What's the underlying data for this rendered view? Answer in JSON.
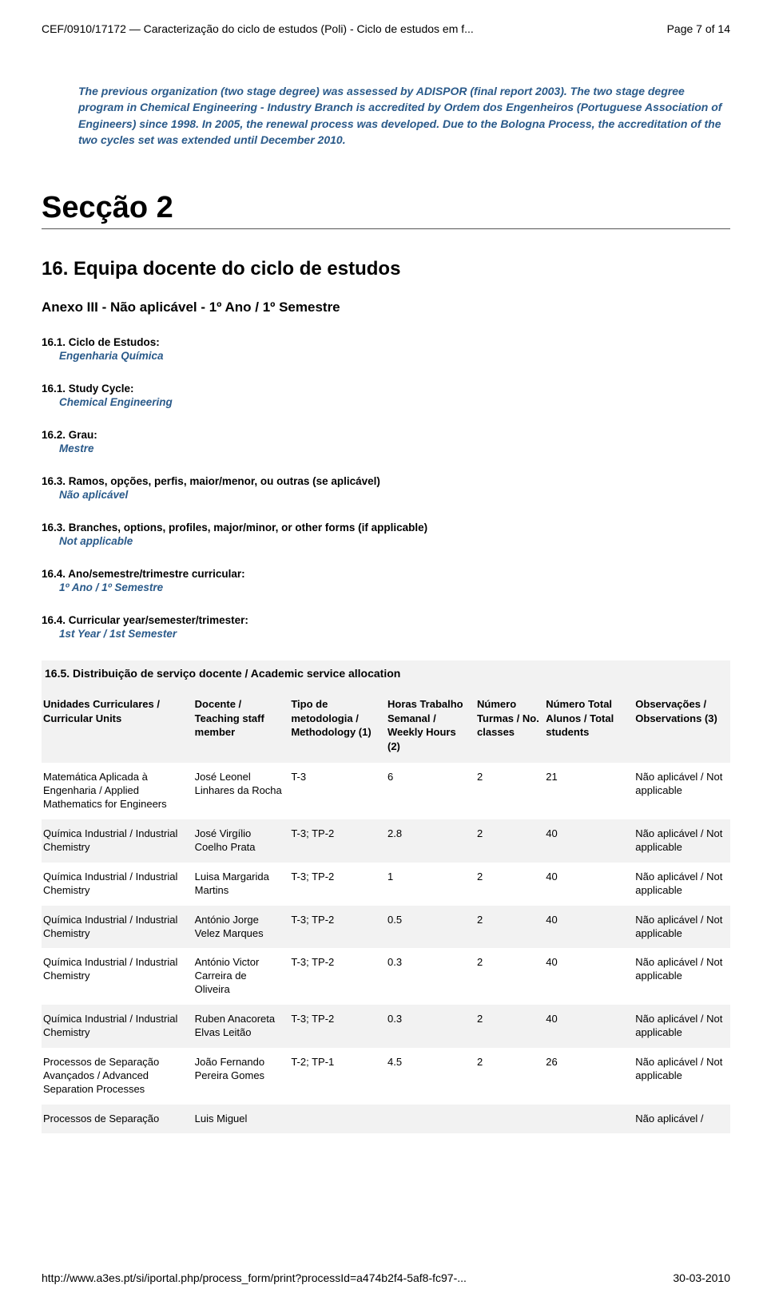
{
  "header": {
    "doc_title": "CEF/0910/17172 — Caracterização do ciclo de estudos (Poli) - Ciclo de estudos em f...",
    "page_indicator": "Page 7 of 14"
  },
  "intro_paragraph": "The previous organization (two stage degree) was assessed by ADISPOR (final report 2003). The two stage degree program in Chemical Engineering - Industry Branch is accredited by Ordem dos Engenheiros (Portuguese Association of Engineers) since 1998. In 2005, the renewal process was developed. Due to the Bologna Process, the accreditation of the two cycles set was extended until December 2010.",
  "section": {
    "title": "Secção 2",
    "h2": "16. Equipa docente do ciclo de estudos",
    "anexo": "Anexo III - Não aplicável - 1º Ano / 1º Semestre"
  },
  "fields": {
    "f1_lbl": "16.1. Ciclo de Estudos:",
    "f1_val": "Engenharia Química",
    "f2_lbl": "16.1. Study Cycle:",
    "f2_val": "Chemical Engineering",
    "f3_lbl": "16.2. Grau:",
    "f3_val": "Mestre",
    "f4_lbl": "16.3. Ramos, opções, perfis, maior/menor, ou outras (se aplicável)",
    "f4_val": "Não aplicável",
    "f5_lbl": "16.3. Branches, options, profiles, major/minor, or other forms (if applicable)",
    "f5_val": "Not applicable",
    "f6_lbl": "16.4. Ano/semestre/trimestre curricular:",
    "f6_val": "1º Ano / 1º Semestre",
    "f7_lbl": "16.4. Curricular year/semester/trimester:",
    "f7_val": "1st Year / 1st Semester"
  },
  "table": {
    "title": "16.5. Distribuição de serviço docente / Academic service allocation",
    "columns": [
      "Unidades Curriculares / Curricular Units",
      "Docente / Teaching staff member",
      "Tipo de metodologia / Methodology (1)",
      "Horas Trabalho Semanal / Weekly Hours (2)",
      "Número Turmas / No. classes",
      "Número Total Alunos / Total students",
      "Observações / Observations (3)"
    ],
    "rows": [
      [
        "Matemática Aplicada à Engenharia / Applied Mathematics for Engineers",
        "José Leonel Linhares da Rocha",
        "T-3",
        "6",
        "2",
        "21",
        "Não aplicável / Not applicable"
      ],
      [
        "Química Industrial / Industrial Chemistry",
        "José Virgílio Coelho Prata",
        "T-3; TP-2",
        "2.8",
        "2",
        "40",
        "Não aplicável / Not applicable"
      ],
      [
        "Química Industrial / Industrial Chemistry",
        "Luisa Margarida Martins",
        "T-3; TP-2",
        "1",
        "2",
        "40",
        "Não aplicável / Not applicable"
      ],
      [
        "Química Industrial / Industrial Chemistry",
        "António Jorge Velez Marques",
        "T-3; TP-2",
        "0.5",
        "2",
        "40",
        "Não aplicável / Not applicable"
      ],
      [
        "Química Industrial / Industrial Chemistry",
        "António Victor Carreira de Oliveira",
        "T-3; TP-2",
        "0.3",
        "2",
        "40",
        "Não aplicável / Not applicable"
      ],
      [
        "Química Industrial / Industrial Chemistry",
        "Ruben Anacoreta Elvas Leitão",
        "T-3; TP-2",
        "0.3",
        "2",
        "40",
        "Não aplicável / Not applicable"
      ],
      [
        "Processos de Separação Avançados / Advanced Separation Processes",
        "João Fernando Pereira Gomes",
        "T-2; TP-1",
        "4.5",
        "2",
        "26",
        "Não aplicável / Not applicable"
      ],
      [
        "Processos de Separação",
        "Luis Miguel",
        "",
        "",
        "",
        "",
        "Não aplicável /"
      ]
    ],
    "col_widths": [
      "22%",
      "14%",
      "14%",
      "13%",
      "10%",
      "13%",
      "14%"
    ]
  },
  "footer": {
    "url": "http://www.a3es.pt/si/iportal.php/process_form/print?processId=a474b2f4-5af8-fc97-...",
    "date": "30-03-2010"
  }
}
